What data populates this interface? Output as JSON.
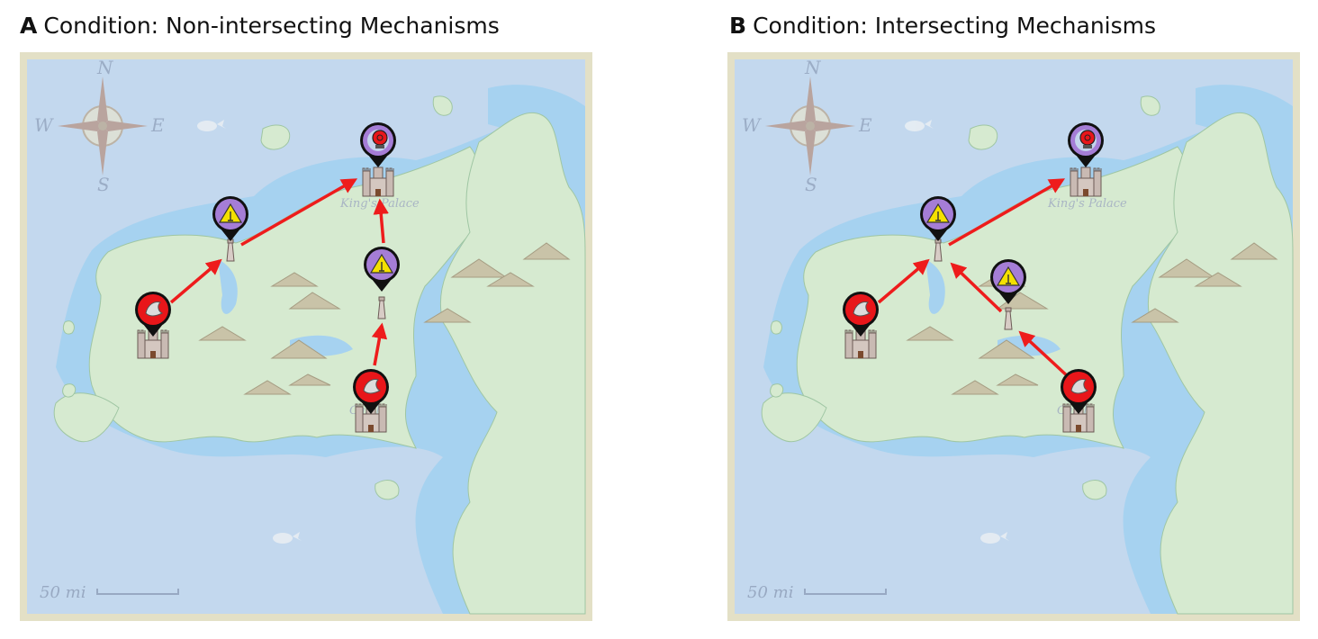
{
  "panels": [
    {
      "letter": "A",
      "title": "Condition: Non-intersecting Mechanisms",
      "compass": {
        "n": "N",
        "s": "S",
        "e": "E",
        "w": "W"
      },
      "scale_label": "50 mi",
      "place_labels": {
        "palace": "King's Palace",
        "castle": "Castle"
      },
      "markers": [
        {
          "kind": "dove",
          "color": "#e8161a"
        },
        {
          "kind": "radio-tower",
          "color": "#a57dd6"
        },
        {
          "kind": "alarm",
          "color": "#a57dd6"
        },
        {
          "kind": "radio-tower",
          "color": "#a57dd6"
        },
        {
          "kind": "dove",
          "color": "#e8161a"
        }
      ]
    },
    {
      "letter": "B",
      "title": "Condition: Intersecting Mechanisms",
      "compass": {
        "n": "N",
        "s": "S",
        "e": "E",
        "w": "W"
      },
      "scale_label": "50 mi",
      "place_labels": {
        "palace": "King's Palace",
        "castle": "Castle"
      },
      "markers": [
        {
          "kind": "dove",
          "color": "#e8161a"
        },
        {
          "kind": "radio-tower",
          "color": "#a57dd6"
        },
        {
          "kind": "alarm",
          "color": "#a57dd6"
        },
        {
          "kind": "radio-tower",
          "color": "#a57dd6"
        },
        {
          "kind": "dove",
          "color": "#e8161a"
        }
      ]
    }
  ],
  "colors": {
    "arrow": "#ee1c1c",
    "sea": "#c3d8ee",
    "shallow": "#a6d2f0",
    "land": "#d6ead0",
    "frame": "#e3e0c6"
  }
}
